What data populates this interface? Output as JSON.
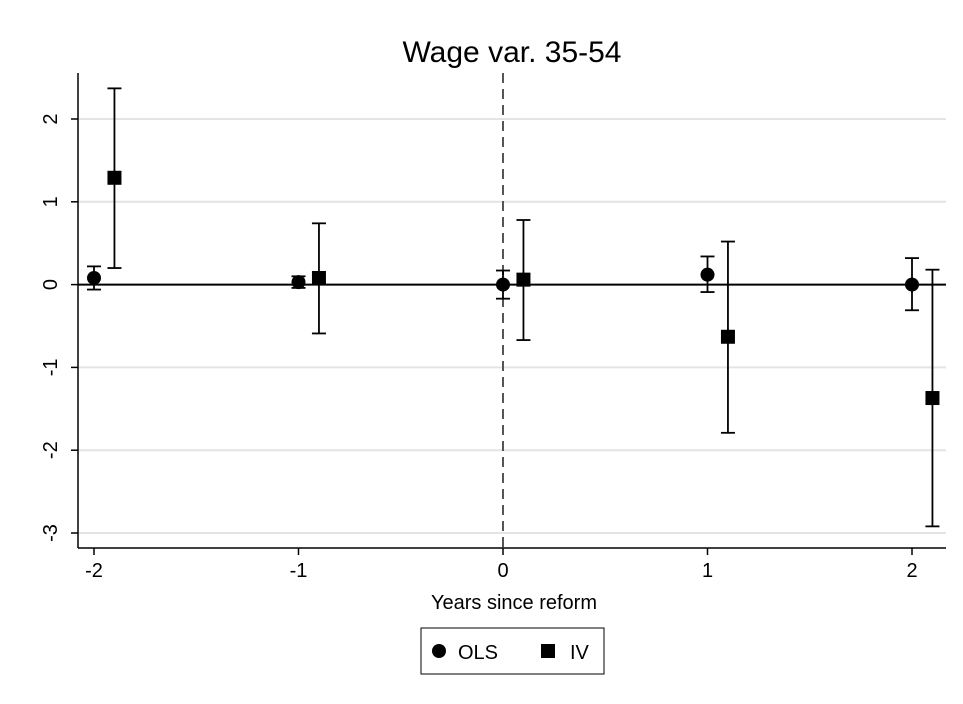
{
  "chart_data": {
    "type": "scatter",
    "title": "Wage var. 35-54",
    "xlabel": "Years since reform",
    "ylabel": "",
    "xlim": [
      -2.05,
      2.18
    ],
    "ylim": [
      -3.12,
      2.55
    ],
    "xticks": [
      -2,
      -1,
      0,
      1,
      2
    ],
    "yticks": [
      2,
      1,
      0,
      -1,
      -2,
      -3
    ],
    "xtick_labels": [
      "-2",
      "-1",
      "0",
      "1",
      "2"
    ],
    "ytick_labels": [
      "2",
      "1",
      "0",
      "-1",
      "-2",
      "-3"
    ],
    "grid": true,
    "reference_lines": {
      "horizontal_zero": true,
      "vertical_dashed_at_x": 0
    },
    "legend_position": "bottom-center",
    "series": [
      {
        "name": "OLS",
        "marker": "circle",
        "color": "#000000",
        "points": [
          {
            "x": -2,
            "y": 0.08,
            "lo": -0.06,
            "hi": 0.22
          },
          {
            "x": -1,
            "y": 0.03,
            "lo": -0.04,
            "hi": 0.1
          },
          {
            "x": 0,
            "y": 0.0,
            "lo": -0.17,
            "hi": 0.17
          },
          {
            "x": 1,
            "y": 0.12,
            "lo": -0.09,
            "hi": 0.34
          },
          {
            "x": 2,
            "y": 0.0,
            "lo": -0.31,
            "hi": 0.32
          }
        ]
      },
      {
        "name": "IV",
        "marker": "square",
        "color": "#000000",
        "points": [
          {
            "x": -1.9,
            "y": 1.29,
            "lo": 0.2,
            "hi": 2.37
          },
          {
            "x": -0.9,
            "y": 0.08,
            "lo": -0.59,
            "hi": 0.74
          },
          {
            "x": 0.1,
            "y": 0.06,
            "lo": -0.67,
            "hi": 0.78
          },
          {
            "x": 1.1,
            "y": -0.63,
            "lo": -1.79,
            "hi": 0.52
          },
          {
            "x": 2.1,
            "y": -1.37,
            "lo": -2.92,
            "hi": 0.18
          }
        ]
      }
    ]
  }
}
